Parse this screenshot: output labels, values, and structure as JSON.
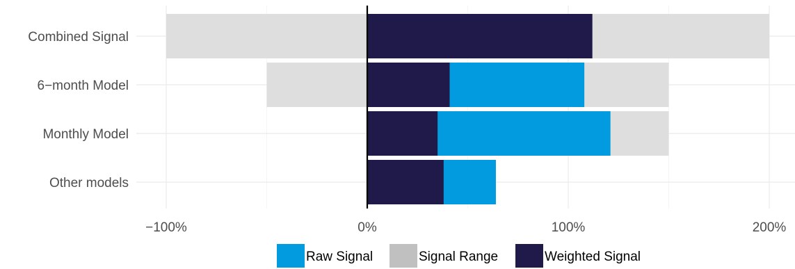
{
  "chart_data": {
    "type": "bar",
    "orientation": "horizontal",
    "title": "",
    "xlabel": "",
    "ylabel": "",
    "categories": [
      "Combined Signal",
      "6−month Model",
      "Monthly Model",
      "Other models"
    ],
    "x_ticks": [
      "−100%",
      "0%",
      "100%",
      "200%"
    ],
    "x_tick_values": [
      -100,
      0,
      100,
      200
    ],
    "xlim": [
      -110,
      210
    ],
    "grid": true,
    "legend_position": "bottom",
    "series": [
      {
        "key": "range",
        "name": "Signal Range",
        "color": "#dedede",
        "ranges": [
          [
            -100,
            200
          ],
          [
            -50,
            150
          ],
          [
            0,
            150
          ],
          null
        ]
      },
      {
        "key": "raw",
        "name": "Raw Signal",
        "color": "#039be0",
        "values": [
          null,
          108,
          121,
          64
        ]
      },
      {
        "key": "weighted",
        "name": "Weighted Signal",
        "color": "#201a4a",
        "values": [
          112,
          41,
          35,
          38
        ]
      }
    ],
    "legend": [
      {
        "name": "Raw Signal",
        "color": "#039be0"
      },
      {
        "name": "Signal Range",
        "color": "#c0c0c0"
      },
      {
        "name": "Weighted Signal",
        "color": "#201a4a"
      }
    ]
  }
}
